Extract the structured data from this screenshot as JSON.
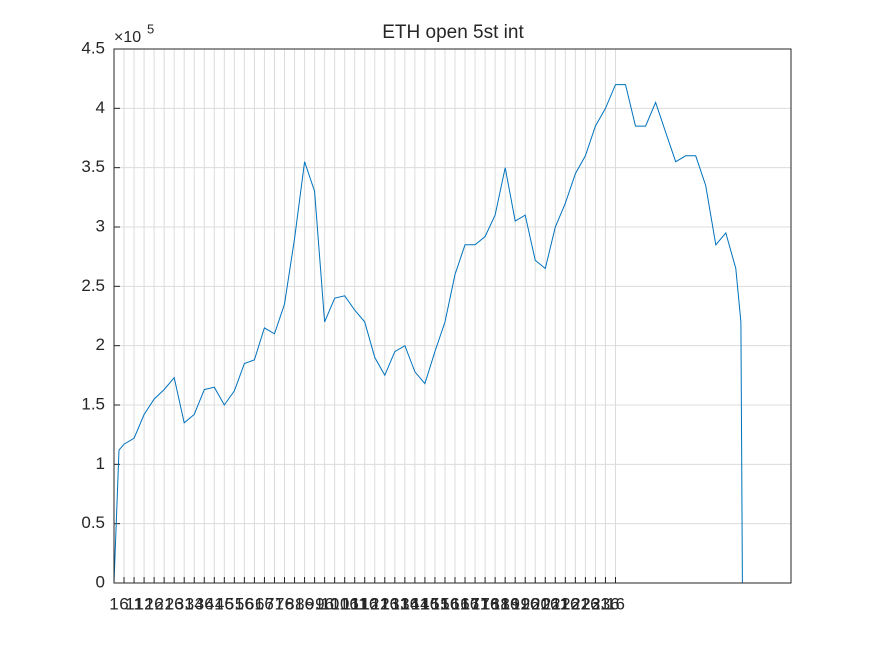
{
  "chart_data": {
    "type": "line",
    "title": "ETH open 5st int",
    "y_multiplier": {
      "base": "×10",
      "exponent": "5"
    },
    "x": [
      0,
      1,
      2,
      4,
      6,
      8,
      10,
      12,
      14,
      16,
      18,
      20,
      22,
      24,
      26,
      28,
      30,
      32,
      34,
      36,
      38,
      40,
      42,
      44,
      46,
      48,
      50,
      52,
      54,
      56,
      58,
      60,
      62,
      64,
      66,
      68,
      70,
      72,
      74,
      76,
      78,
      80,
      82,
      84,
      86,
      88,
      90,
      92,
      94,
      96,
      98,
      100,
      102,
      104,
      106,
      108,
      110,
      112,
      114,
      116,
      118,
      120,
      122,
      124,
      125,
      125.3
    ],
    "series": [
      {
        "color": "#0072bd",
        "values": [
          0,
          1.12,
          1.17,
          1.22,
          1.42,
          1.55,
          1.63,
          1.73,
          1.35,
          1.42,
          1.63,
          1.65,
          1.5,
          1.62,
          1.85,
          1.88,
          2.15,
          2.1,
          2.35,
          2.9,
          3.55,
          3.3,
          2.2,
          2.4,
          2.42,
          2.3,
          2.2,
          1.9,
          1.75,
          1.95,
          2.0,
          1.78,
          1.68,
          1.95,
          2.2,
          2.6,
          2.85,
          2.85,
          2.92,
          3.1,
          3.5,
          3.05,
          3.1,
          2.72,
          2.65,
          3.0,
          3.2,
          3.45,
          3.6,
          3.85,
          4.0,
          4.2,
          4.2,
          3.85,
          3.85,
          4.05,
          3.8,
          3.55,
          3.6,
          3.6,
          3.35,
          2.85,
          2.95,
          2.65,
          2.2,
          0
        ]
      },
      {
        "color": "#d95319",
        "x": [
          0,
          125.3
        ],
        "values": [
          0,
          0
        ]
      }
    ],
    "xlim": [
      0,
      135
    ],
    "ylim": [
      0,
      4.5
    ],
    "yticks": [
      0,
      0.5,
      1,
      1.5,
      2,
      2.5,
      3,
      3.5,
      4,
      4.5
    ],
    "xticks": [
      {
        "value": 0,
        "label": "1"
      },
      {
        "value": 2,
        "label": "6"
      },
      {
        "value": 4,
        "label": "11"
      },
      {
        "value": 6,
        "label": "12"
      },
      {
        "value": 8,
        "label": "16"
      },
      {
        "value": 10,
        "label": "21"
      },
      {
        "value": 12,
        "label": "26"
      },
      {
        "value": 14,
        "label": "31"
      },
      {
        "value": 16,
        "label": "34"
      },
      {
        "value": 18,
        "label": "36"
      },
      {
        "value": 20,
        "label": "41"
      },
      {
        "value": 22,
        "label": "46"
      },
      {
        "value": 24,
        "label": "51"
      },
      {
        "value": 26,
        "label": "56"
      },
      {
        "value": 28,
        "label": "61"
      },
      {
        "value": 30,
        "label": "66"
      },
      {
        "value": 32,
        "label": "71"
      },
      {
        "value": 34,
        "label": "76"
      },
      {
        "value": 36,
        "label": "81"
      },
      {
        "value": 38,
        "label": "86"
      },
      {
        "value": 40,
        "label": "91"
      },
      {
        "value": 42,
        "label": "96"
      },
      {
        "value": 44,
        "label": "101"
      },
      {
        "value": 46,
        "label": "106"
      },
      {
        "value": 48,
        "label": "111"
      },
      {
        "value": 50,
        "label": "116"
      },
      {
        "value": 52,
        "label": "121"
      },
      {
        "value": 54,
        "label": "126"
      },
      {
        "value": 56,
        "label": "131"
      },
      {
        "value": 58,
        "label": "136"
      },
      {
        "value": 60,
        "label": "141"
      },
      {
        "value": 62,
        "label": "146"
      },
      {
        "value": 64,
        "label": "151"
      },
      {
        "value": 66,
        "label": "156"
      },
      {
        "value": 68,
        "label": "161"
      },
      {
        "value": 70,
        "label": "166"
      },
      {
        "value": 72,
        "label": "171"
      },
      {
        "value": 74,
        "label": "176"
      },
      {
        "value": 76,
        "label": "181"
      },
      {
        "value": 78,
        "label": "186"
      },
      {
        "value": 80,
        "label": "191"
      },
      {
        "value": 82,
        "label": "196"
      },
      {
        "value": 84,
        "label": "201"
      },
      {
        "value": 86,
        "label": "206"
      },
      {
        "value": 88,
        "label": "211"
      },
      {
        "value": 90,
        "label": "216"
      },
      {
        "value": 92,
        "label": "221"
      },
      {
        "value": 94,
        "label": "226"
      },
      {
        "value": 96,
        "label": "231"
      },
      {
        "value": 98,
        "label": "236"
      },
      {
        "value": 100,
        "label": "16"
      }
    ],
    "grid": true
  }
}
